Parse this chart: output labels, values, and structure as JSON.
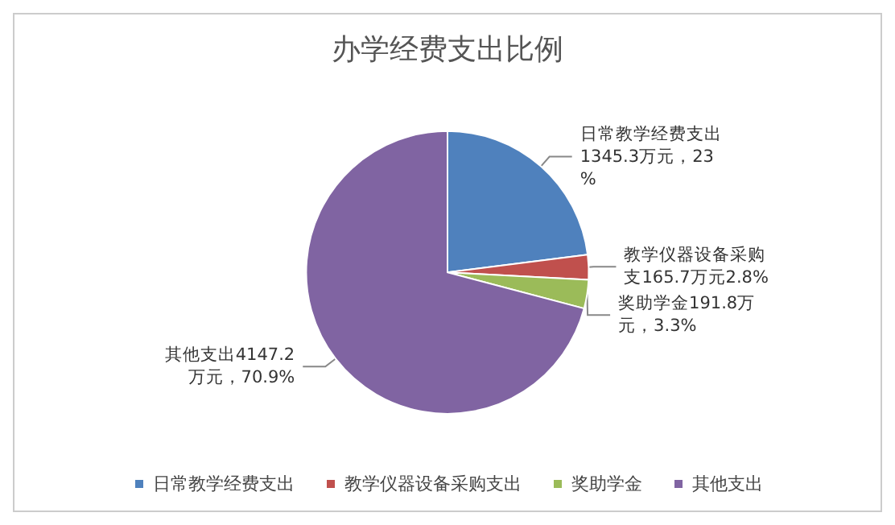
{
  "chart_data": {
    "type": "pie",
    "title": "办学经费支出比例",
    "categories": [
      "日常教学经费支出",
      "教学仪器设备采购支出",
      "奖助学金",
      "其他支出"
    ],
    "values": [
      1345.3,
      165.7,
      191.8,
      4147.2
    ],
    "value_labels": [
      "日常教学经费支出1345.3万元，23%",
      "教学仪器设备采购支165.7万元2.8%",
      "奖助学金191.8万元，3.3%",
      "其他支出4147.2万元，70.9%"
    ],
    "colors": [
      "#4f81bd",
      "#c0504d",
      "#9bbb59",
      "#8064a2"
    ],
    "legend": "bottom"
  }
}
